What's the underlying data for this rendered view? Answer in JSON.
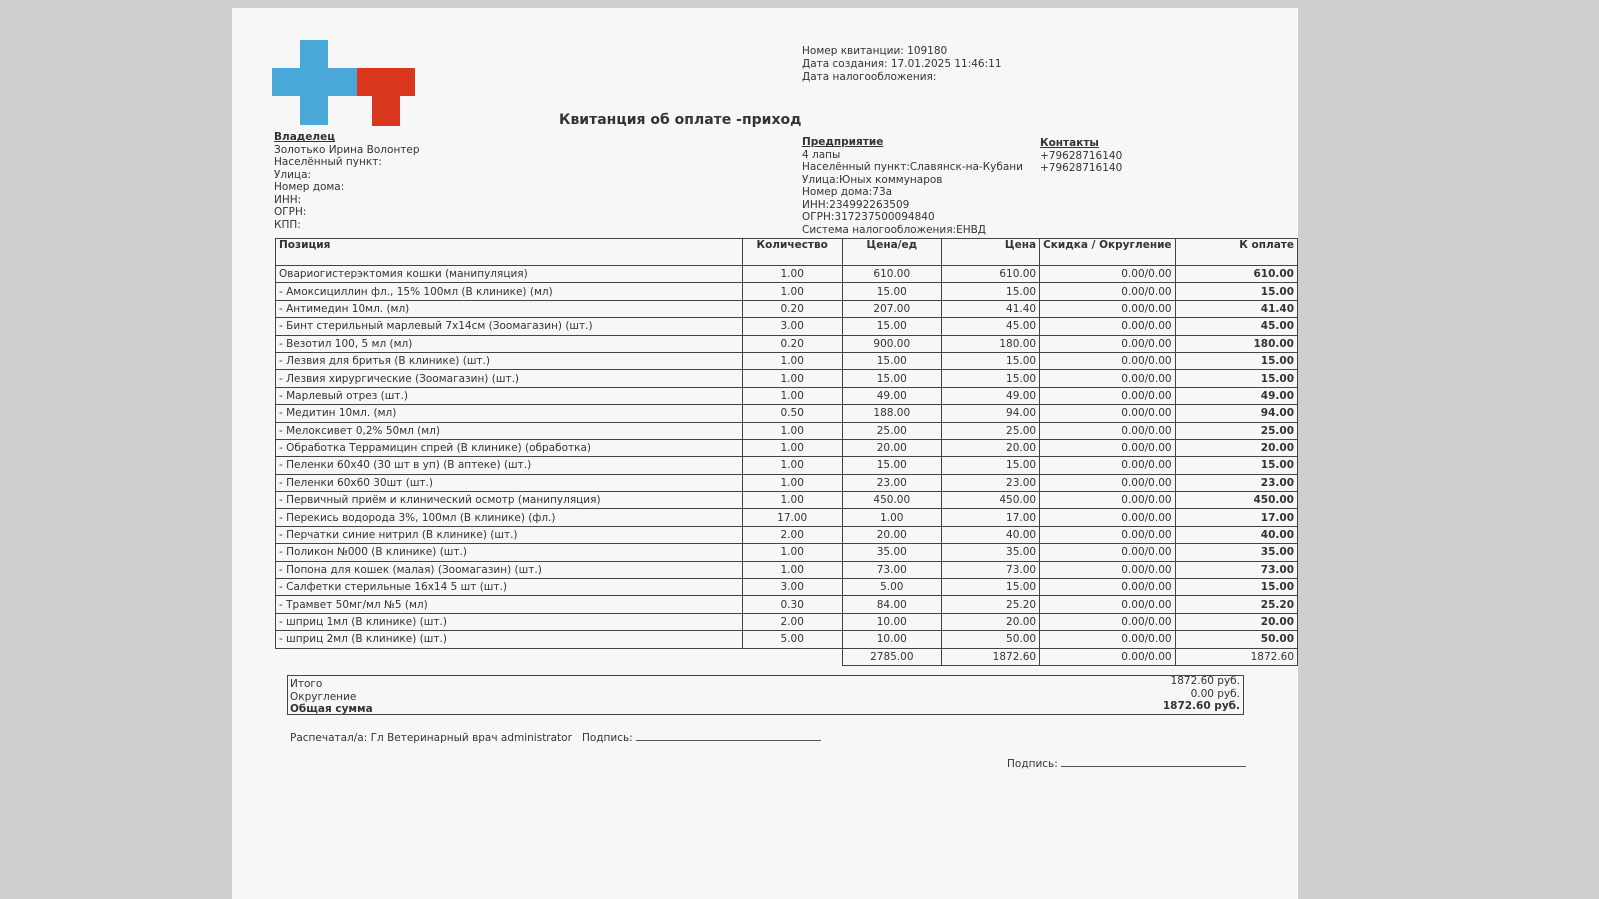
{
  "header": {
    "receipt_number": "Номер квитанции: 109180",
    "created": "Дата создания: 17.01.2025 11:46:11",
    "tax_date": "Дата налогообложения:",
    "title": "Квитанция об оплате -приход"
  },
  "owner": {
    "heading": "Владелец",
    "lines": [
      "Золотько Ирина Волонтер",
      "Населённый пункт:",
      "Улица:",
      "Номер дома:",
      "ИНН:",
      "ОГРН:",
      "КПП:"
    ]
  },
  "enterprise": {
    "heading": "Предприятие",
    "lines": [
      "4 лапы",
      "Населённый пункт:Славянск-на-Кубани",
      "Улица:Юных коммунаров",
      "Номер дома:73а",
      "ИНН:234992263509",
      "ОГРН:317237500094840",
      "Система налогообложения:ЕНВД"
    ]
  },
  "contacts": {
    "heading": "Контакты",
    "lines": [
      "+79628716140",
      "+79628716140"
    ]
  },
  "table": {
    "columns": [
      "Позиция",
      "Количество",
      "Цена/ед",
      "Цена",
      "Скидка / Округление",
      "К оплате"
    ],
    "rows": [
      [
        "Овариогистерэктомия кошки (манипуляция)",
        "1.00",
        "610.00",
        "610.00",
        "0.00/0.00",
        "610.00"
      ],
      [
        "- Амоксициллин фл., 15% 100мл (В клинике) (мл)",
        "1.00",
        "15.00",
        "15.00",
        "0.00/0.00",
        "15.00"
      ],
      [
        "- Антимедин 10мл. (мл)",
        "0.20",
        "207.00",
        "41.40",
        "0.00/0.00",
        "41.40"
      ],
      [
        "- Бинт стерильный марлевый 7x14см (Зоомагазин) (шт.)",
        "3.00",
        "15.00",
        "45.00",
        "0.00/0.00",
        "45.00"
      ],
      [
        "- Везотил 100, 5 мл (мл)",
        "0.20",
        "900.00",
        "180.00",
        "0.00/0.00",
        "180.00"
      ],
      [
        "- Лезвия для бритья (В клинике) (шт.)",
        "1.00",
        "15.00",
        "15.00",
        "0.00/0.00",
        "15.00"
      ],
      [
        "- Лезвия хирургические (Зоомагазин) (шт.)",
        "1.00",
        "15.00",
        "15.00",
        "0.00/0.00",
        "15.00"
      ],
      [
        "- Марлевый отрез (шт.)",
        "1.00",
        "49.00",
        "49.00",
        "0.00/0.00",
        "49.00"
      ],
      [
        "- Медитин 10мл. (мл)",
        "0.50",
        "188.00",
        "94.00",
        "0.00/0.00",
        "94.00"
      ],
      [
        "- Мелоксивет 0,2% 50мл (мл)",
        "1.00",
        "25.00",
        "25.00",
        "0.00/0.00",
        "25.00"
      ],
      [
        "- Обработка Террамицин спрей (В клинике) (обработка)",
        "1.00",
        "20.00",
        "20.00",
        "0.00/0.00",
        "20.00"
      ],
      [
        "- Пеленки 60x40 (30 шт в уп) (В аптеке) (шт.)",
        "1.00",
        "15.00",
        "15.00",
        "0.00/0.00",
        "15.00"
      ],
      [
        "- Пеленки 60x60 30шт (шт.)",
        "1.00",
        "23.00",
        "23.00",
        "0.00/0.00",
        "23.00"
      ],
      [
        "- Первичный приём и клинический осмотр (манипуляция)",
        "1.00",
        "450.00",
        "450.00",
        "0.00/0.00",
        "450.00"
      ],
      [
        "- Перекись водорода 3%, 100мл (В клинике) (фл.)",
        "17.00",
        "1.00",
        "17.00",
        "0.00/0.00",
        "17.00"
      ],
      [
        "- Перчатки синие нитрил (В клинике) (шт.)",
        "2.00",
        "20.00",
        "40.00",
        "0.00/0.00",
        "40.00"
      ],
      [
        "- Поликон №000 (В клинике) (шт.)",
        "1.00",
        "35.00",
        "35.00",
        "0.00/0.00",
        "35.00"
      ],
      [
        "- Попона для кошек (малая) (Зоомагазин) (шт.)",
        "1.00",
        "73.00",
        "73.00",
        "0.00/0.00",
        "73.00"
      ],
      [
        "- Салфетки стерильные 16x14 5 шт (шт.)",
        "3.00",
        "5.00",
        "15.00",
        "0.00/0.00",
        "15.00"
      ],
      [
        "- Трамвет 50мг/мл №5 (мл)",
        "0.30",
        "84.00",
        "25.20",
        "0.00/0.00",
        "25.20"
      ],
      [
        "- шприц 1мл (В клинике) (шт.)",
        "2.00",
        "10.00",
        "20.00",
        "0.00/0.00",
        "20.00"
      ],
      [
        "- шприц 2мл (В клинике) (шт.)",
        "5.00",
        "10.00",
        "50.00",
        "0.00/0.00",
        "50.00"
      ]
    ],
    "totals": [
      "2785.00",
      "1872.60",
      "0.00/0.00",
      "1872.60"
    ]
  },
  "summary": {
    "labels": [
      "Итого",
      "Округление",
      "Общая сумма"
    ],
    "values": [
      "1872.60 руб.",
      "0.00 руб.",
      "1872.60 руб."
    ]
  },
  "footer": {
    "printed_by": "Распечатал/а: Гл Ветеринарный врач administrator",
    "signature1": "Подпись:",
    "signature2": "Подпись:"
  }
}
